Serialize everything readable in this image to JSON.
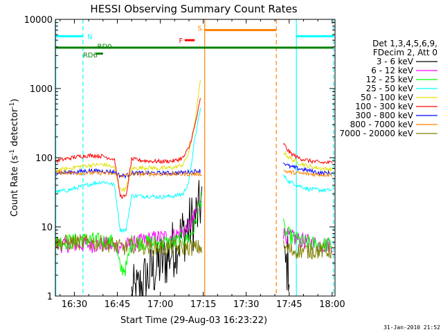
{
  "chart_data": {
    "type": "line",
    "title": "HESSI Observing Summary Count Rates",
    "xlabel": "Start Time (29-Aug-03 16:23:22)",
    "ylabel_main": "Count Rate (s",
    "ylabel_sup1": "-1",
    "ylabel_mid": " detector",
    "ylabel_sup2": "-1",
    "ylabel_end": ")",
    "x_units": "minutes since 16:00 UT",
    "xlim": [
      23.37,
      121.0
    ],
    "ylim": [
      1,
      10000
    ],
    "y_scale": "log",
    "x_ticks": [
      {
        "value": 30,
        "label": "16:30"
      },
      {
        "value": 45,
        "label": "16:45"
      },
      {
        "value": 60,
        "label": "17:00"
      },
      {
        "value": 75,
        "label": "17:15"
      },
      {
        "value": 90,
        "label": "17:30"
      },
      {
        "value": 105,
        "label": "17:45"
      },
      {
        "value": 120,
        "label": "18:00"
      }
    ],
    "y_ticks": [
      {
        "value": 1,
        "label": "1"
      },
      {
        "value": 10,
        "label": "10"
      },
      {
        "value": 100,
        "label": "100"
      },
      {
        "value": 1000,
        "label": "1000"
      },
      {
        "value": 10000,
        "label": "10000"
      }
    ],
    "legend_header": [
      "Det 1,3,4,5,6,9,",
      "FDecim 2, Att 0"
    ],
    "legend_placement": "right",
    "series": [
      {
        "name": "3 - 6 keV",
        "color": "#000000",
        "segments": [
          [
            [
              50,
              1
            ],
            [
              52,
              1.1
            ],
            [
              54,
              1.5
            ],
            [
              56,
              2
            ],
            [
              58,
              2.5
            ],
            [
              60,
              3
            ],
            [
              62,
              3.5
            ],
            [
              64,
              4.5
            ],
            [
              66,
              6
            ],
            [
              68,
              8
            ],
            [
              70,
              10
            ],
            [
              72,
              13
            ],
            [
              73.5,
              17
            ],
            [
              74.6,
              28
            ]
          ],
          [
            [
              103.5,
              2.5
            ],
            [
              104.5,
              3
            ],
            [
              105,
              2.5
            ]
          ]
        ]
      },
      {
        "name": "6 - 12 keV",
        "color": "#ff00ff",
        "segments": [
          [
            [
              23.5,
              5.5
            ],
            [
              30,
              5.5
            ],
            [
              35,
              5.5
            ],
            [
              40,
              5.5
            ],
            [
              45,
              5.2
            ],
            [
              50,
              5.5
            ],
            [
              55,
              6.5
            ],
            [
              60,
              7
            ],
            [
              65,
              7.5
            ],
            [
              68,
              8.5
            ],
            [
              70,
              10
            ],
            [
              72,
              14
            ],
            [
              74.6,
              30
            ]
          ],
          [
            [
              103,
              8
            ],
            [
              104,
              7.5
            ],
            [
              106,
              7
            ],
            [
              108,
              6.5
            ],
            [
              112,
              6
            ],
            [
              116,
              5.5
            ],
            [
              120,
              5.5
            ]
          ]
        ]
      },
      {
        "name": "12 - 25 keV",
        "color": "#00ff00",
        "segments": [
          [
            [
              23.5,
              6
            ],
            [
              30,
              6.2
            ],
            [
              35,
              6.5
            ],
            [
              40,
              6.2
            ],
            [
              44,
              6
            ],
            [
              46,
              2.5
            ],
            [
              48,
              2.5
            ],
            [
              50,
              6
            ],
            [
              55,
              6
            ],
            [
              60,
              5.8
            ],
            [
              65,
              6
            ],
            [
              70,
              7
            ],
            [
              72,
              10
            ],
            [
              74.6,
              33
            ]
          ],
          [
            [
              103,
              10
            ],
            [
              104,
              8
            ],
            [
              106,
              7
            ],
            [
              110,
              6
            ],
            [
              115,
              5.5
            ],
            [
              120,
              5.5
            ]
          ]
        ]
      },
      {
        "name": "25 - 50 keV",
        "color": "#00ffff",
        "segments": [
          [
            [
              23.5,
              32
            ],
            [
              28,
              34
            ],
            [
              32,
              38
            ],
            [
              36,
              42
            ],
            [
              40,
              45
            ],
            [
              42,
              43
            ],
            [
              44,
              40
            ],
            [
              46,
              9
            ],
            [
              48,
              9
            ],
            [
              50,
              28
            ],
            [
              55,
              28
            ],
            [
              60,
              27
            ],
            [
              65,
              28
            ],
            [
              68,
              30
            ],
            [
              70,
              45
            ],
            [
              72,
              180
            ],
            [
              74,
              520
            ]
          ],
          [
            [
              103,
              55
            ],
            [
              105,
              45
            ],
            [
              108,
              40
            ],
            [
              112,
              35
            ],
            [
              116,
              34
            ],
            [
              120,
              34
            ]
          ]
        ]
      },
      {
        "name": "50 - 100 keV",
        "color": "#e0e000",
        "segments": [
          [
            [
              23.5,
              65
            ],
            [
              28,
              70
            ],
            [
              32,
              75
            ],
            [
              36,
              78
            ],
            [
              40,
              80
            ],
            [
              42,
              77
            ],
            [
              44,
              70
            ],
            [
              46,
              35
            ],
            [
              48,
              35
            ],
            [
              50,
              70
            ],
            [
              55,
              72
            ],
            [
              60,
              70
            ],
            [
              65,
              72
            ],
            [
              68,
              80
            ],
            [
              70,
              120
            ],
            [
              72,
              300
            ],
            [
              74,
              1300
            ]
          ],
          [
            [
              103,
              120
            ],
            [
              105,
              100
            ],
            [
              108,
              85
            ],
            [
              112,
              75
            ],
            [
              116,
              70
            ],
            [
              120,
              68
            ]
          ]
        ]
      },
      {
        "name": "100 - 300 keV",
        "color": "#ff0000",
        "segments": [
          [
            [
              23.5,
              90
            ],
            [
              28,
              98
            ],
            [
              32,
              105
            ],
            [
              36,
              108
            ],
            [
              40,
              105
            ],
            [
              42,
              100
            ],
            [
              44,
              95
            ],
            [
              46,
              28
            ],
            [
              48,
              27
            ],
            [
              50,
              95
            ],
            [
              55,
              90
            ],
            [
              60,
              88
            ],
            [
              65,
              90
            ],
            [
              68,
              100
            ],
            [
              70,
              140
            ],
            [
              72,
              280
            ],
            [
              74,
              700
            ]
          ],
          [
            [
              103,
              160
            ],
            [
              105,
              120
            ],
            [
              108,
              100
            ],
            [
              112,
              90
            ],
            [
              116,
              85
            ],
            [
              120,
              85
            ]
          ]
        ]
      },
      {
        "name": "300 - 800 keV",
        "color": "#0000ff",
        "segments": [
          [
            [
              23.5,
              60
            ],
            [
              30,
              62
            ],
            [
              35,
              65
            ],
            [
              40,
              64
            ],
            [
              44,
              62
            ],
            [
              46,
              55
            ],
            [
              48,
              55
            ],
            [
              50,
              60
            ],
            [
              55,
              60
            ],
            [
              60,
              60
            ],
            [
              65,
              60
            ],
            [
              70,
              62
            ],
            [
              74,
              65
            ]
          ],
          [
            [
              103,
              85
            ],
            [
              105,
              75
            ],
            [
              108,
              70
            ],
            [
              112,
              65
            ],
            [
              116,
              60
            ],
            [
              120,
              60
            ]
          ]
        ]
      },
      {
        "name": "800 - 7000 keV",
        "color": "#ff8000",
        "segments": [
          [
            [
              23.5,
              62
            ],
            [
              30,
              60
            ],
            [
              35,
              60
            ],
            [
              40,
              60
            ],
            [
              44,
              58
            ],
            [
              46,
              55
            ],
            [
              48,
              55
            ],
            [
              50,
              58
            ],
            [
              55,
              58
            ],
            [
              60,
              58
            ],
            [
              65,
              58
            ],
            [
              70,
              58
            ],
            [
              74.6,
              58
            ]
          ],
          [
            [
              103,
              65
            ],
            [
              105,
              62
            ],
            [
              108,
              60
            ],
            [
              112,
              58
            ],
            [
              116,
              57
            ],
            [
              120,
              57
            ]
          ]
        ]
      },
      {
        "name": "7000 - 20000 keV",
        "color": "#808000",
        "segments": [
          [
            [
              23.5,
              5.8
            ],
            [
              30,
              6
            ],
            [
              35,
              6
            ],
            [
              40,
              5.8
            ],
            [
              44,
              5.5
            ],
            [
              46,
              5
            ],
            [
              48,
              5
            ],
            [
              50,
              5.5
            ],
            [
              55,
              5.2
            ],
            [
              60,
              5
            ],
            [
              65,
              5
            ],
            [
              70,
              5
            ],
            [
              74.6,
              5
            ]
          ],
          [
            [
              103,
              5
            ],
            [
              106,
              4.5
            ],
            [
              110,
              4.5
            ],
            [
              115,
              4.5
            ],
            [
              120,
              4.5
            ]
          ]
        ]
      }
    ],
    "vlines": [
      {
        "x": 23.5,
        "color": "#00ffff",
        "style": "solid"
      },
      {
        "x": 33.0,
        "color": "#00ffff",
        "style": "dashed"
      },
      {
        "x": 75.5,
        "color": "#ff8000",
        "style": "solid"
      },
      {
        "x": 100.5,
        "color": "#ff8000",
        "style": "dashed"
      },
      {
        "x": 107.5,
        "color": "#00ffff",
        "style": "solid"
      },
      {
        "x": 120.5,
        "color": "#00ffff",
        "style": "dashed"
      }
    ],
    "flag_bars": [
      {
        "label": "N",
        "color": "#00ffff",
        "x1": 23.5,
        "x2": 33.0,
        "y": 5700,
        "label_x": 34.5,
        "label_y": 5700,
        "label_align": "start"
      },
      {
        "label": "N",
        "color": "#00ffff",
        "x1": 107.5,
        "x2": 120.5,
        "y": 5700,
        "label_x": 0,
        "label_y": 0,
        "label_align": "none"
      },
      {
        "label": "RD0",
        "color": "#008000",
        "x1": 23.5,
        "x2": 120.5,
        "y": 3900,
        "label_x": 38,
        "label_y": 4100,
        "label_align": "start"
      },
      {
        "label": "RD6",
        "color": "#008000",
        "x1": 37.5,
        "x2": 40,
        "y": 3200,
        "label_x": 33.0,
        "label_y": 3100,
        "label_align": "start"
      },
      {
        "label": "F",
        "color": "#ff0000",
        "x1": 68.5,
        "x2": 72.0,
        "y": 5000,
        "label_x": 66.5,
        "label_y": 5000,
        "label_align": "start"
      },
      {
        "label": "S",
        "color": "#ff8000",
        "x1": 75.5,
        "x2": 100.5,
        "y": 7000,
        "label_x": 73.0,
        "label_y": 7500,
        "label_align": "start"
      }
    ],
    "grid": false
  },
  "footer": {
    "timestamp": "31-Jan-2010 21:52"
  }
}
